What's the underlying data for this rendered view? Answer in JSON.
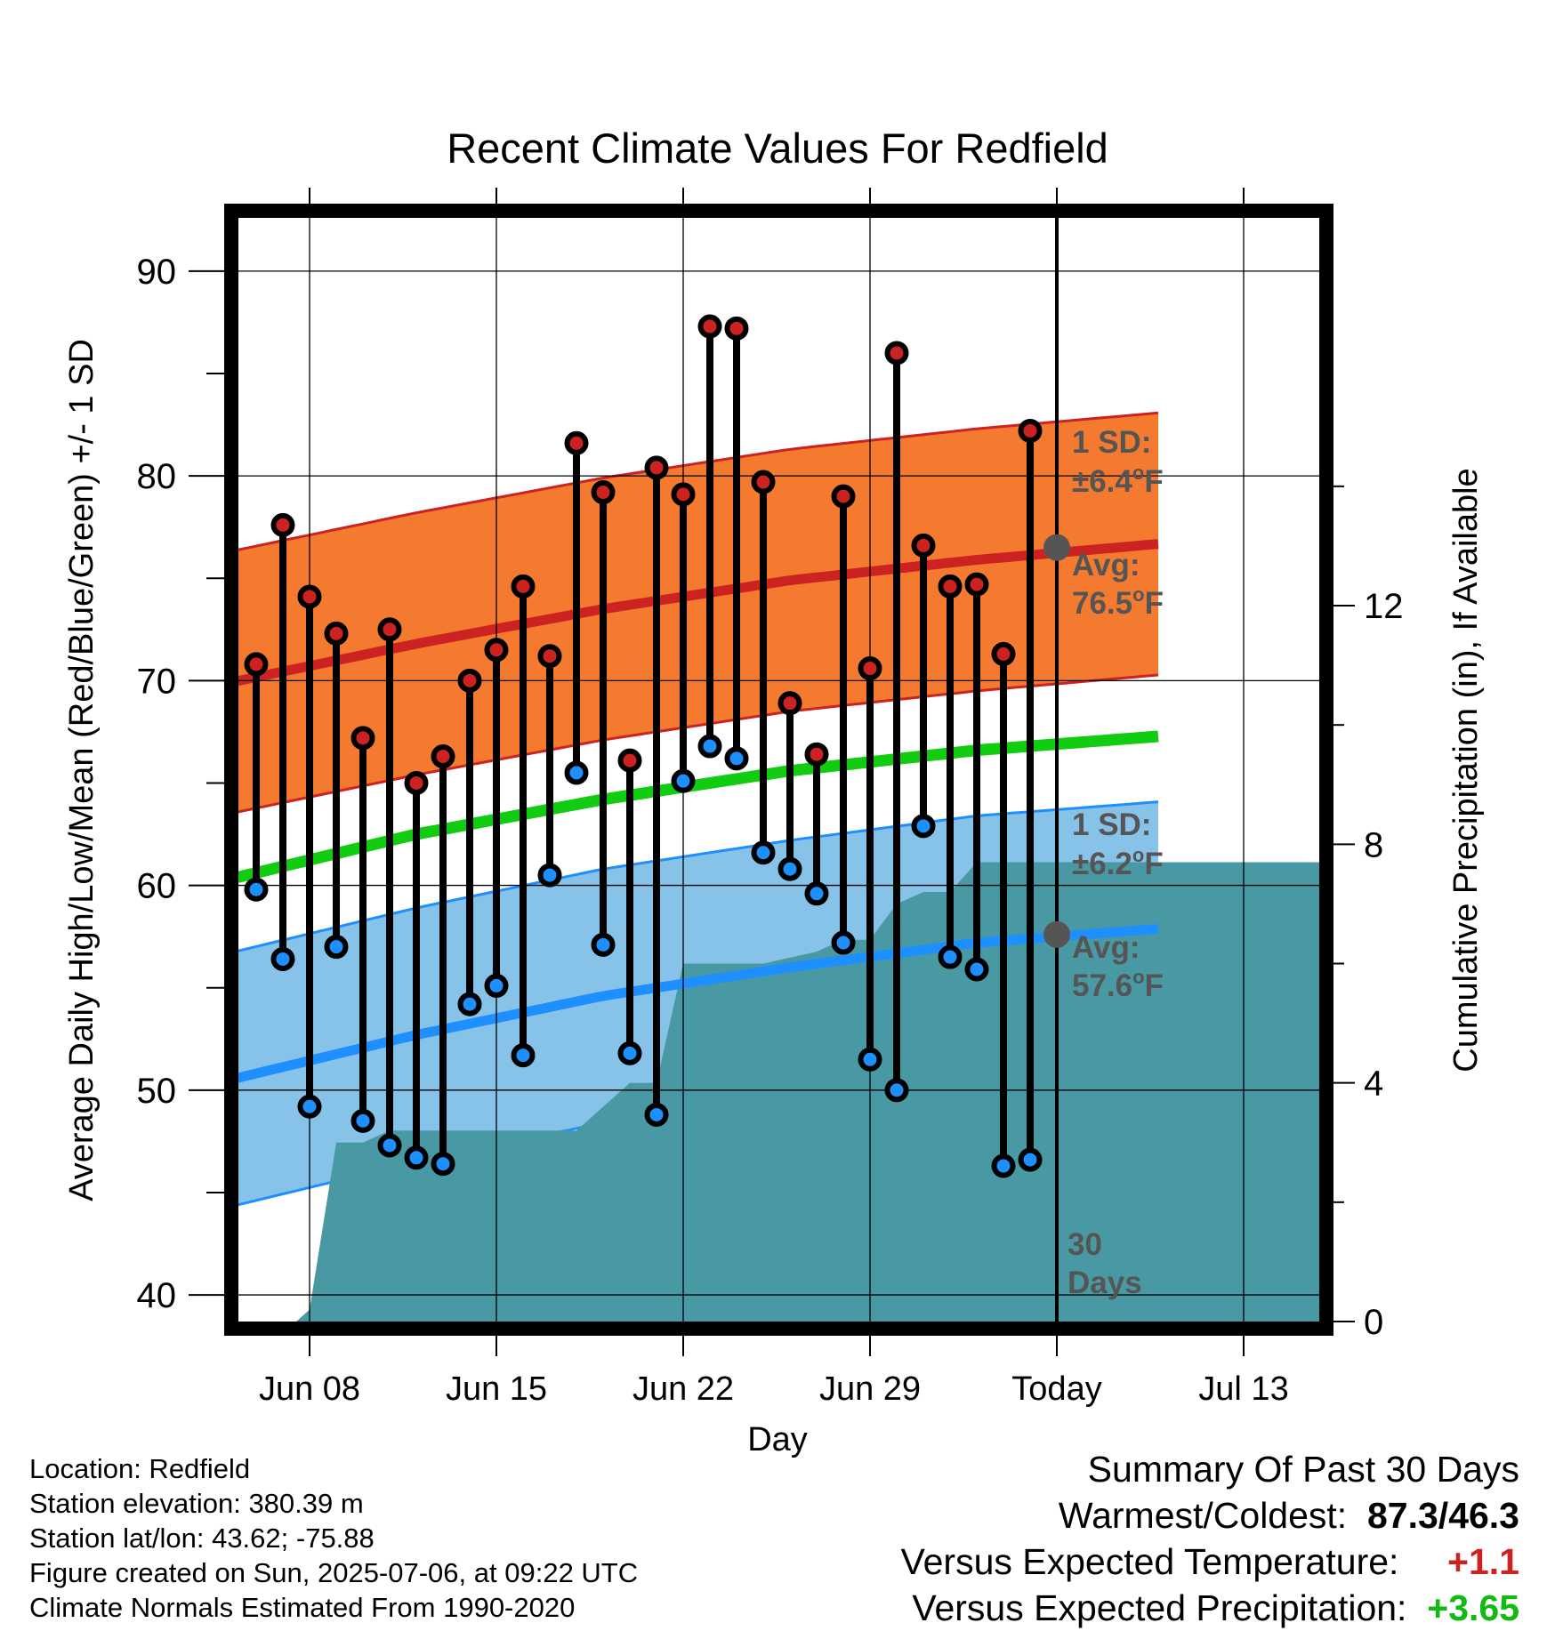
{
  "title": "Recent Climate Values For Redfield",
  "colors": {
    "high": "#cc2222",
    "low": "#1e8fff",
    "mean": "#11cc11",
    "high_band": "#f47a30",
    "low_band": "#87c2e8",
    "precip": "#4999a4",
    "positive": "#cc2222",
    "precip_positive": "#11bb11"
  },
  "chart_data": {
    "type": "line",
    "title": "Recent Climate Values For Redfield",
    "xlabel": "Day",
    "ylabel": "Average Daily High/Low/Mean (Red/Blue/Green) +/- 1 SD",
    "y2label": "Cumulative Precipitation (in), If Available",
    "x_ticks": [
      "Jun 08",
      "Jun 15",
      "Jun 22",
      "Jun 29",
      "Today",
      "Jul 13"
    ],
    "ylim": [
      38.7,
      92.6
    ],
    "y_ticks": [
      40,
      50,
      60,
      70,
      80,
      90
    ],
    "y2lim": [
      0,
      18.5
    ],
    "y2_ticks": [
      0,
      4,
      8,
      12
    ],
    "grid": true,
    "today_marker": "Today",
    "today_label": "30\nDays",
    "days": [
      "Jun 06",
      "Jun 07",
      "Jun 08",
      "Jun 09",
      "Jun 10",
      "Jun 11",
      "Jun 12",
      "Jun 13",
      "Jun 14",
      "Jun 15",
      "Jun 16",
      "Jun 17",
      "Jun 18",
      "Jun 19",
      "Jun 20",
      "Jun 21",
      "Jun 22",
      "Jun 23",
      "Jun 24",
      "Jun 25",
      "Jun 26",
      "Jun 27",
      "Jun 28",
      "Jun 29",
      "Jun 30",
      "Jul 01",
      "Jul 02",
      "Jul 03",
      "Jul 04",
      "Jul 05"
    ],
    "observed_high": [
      70.8,
      77.6,
      74.1,
      72.3,
      67.2,
      72.5,
      65.0,
      66.3,
      70.0,
      71.5,
      74.6,
      71.2,
      81.6,
      79.2,
      66.1,
      80.4,
      79.1,
      87.3,
      87.2,
      79.7,
      68.9,
      66.4,
      79.0,
      70.6,
      86.0,
      76.6,
      74.6,
      74.7,
      71.3,
      82.2
    ],
    "observed_low": [
      59.8,
      56.4,
      49.2,
      57.0,
      48.5,
      47.3,
      46.7,
      46.4,
      54.2,
      55.1,
      51.7,
      60.5,
      65.5,
      57.1,
      51.8,
      48.8,
      65.1,
      66.8,
      66.2,
      61.6,
      60.8,
      59.6,
      57.2,
      51.5,
      50.0,
      62.9,
      56.5,
      55.9,
      46.3,
      46.6
    ],
    "normal_high": {
      "x": [
        "Jun 05",
        "Jun 12",
        "Jun 19",
        "Jun 26",
        "Jul 03",
        "Jul 10",
        "Jul 16"
      ],
      "values": [
        69.9,
        71.8,
        73.5,
        74.9,
        75.9,
        76.7,
        77.1
      ],
      "sd_label": "1 SD:",
      "sd_value": "±6.4",
      "sd": 6.4,
      "avg_label": "Avg:",
      "avg_value": "76.5",
      "avg": 76.5,
      "unit_sup": "o",
      "unit": "F"
    },
    "normal_low": {
      "x": [
        "Jun 05",
        "Jun 12",
        "Jun 19",
        "Jun 26",
        "Jul 03",
        "Jul 10",
        "Jul 16"
      ],
      "values": [
        50.5,
        52.7,
        54.6,
        56.0,
        57.2,
        57.9,
        58.3
      ],
      "sd_label": "1 SD:",
      "sd_value": "±6.2",
      "sd": 6.2,
      "avg_label": "Avg:",
      "avg_value": "57.6",
      "avg": 57.6,
      "unit_sup": "o",
      "unit": "F"
    },
    "normal_mean": {
      "x": [
        "Jun 05",
        "Jun 12",
        "Jun 19",
        "Jun 26",
        "Jul 03",
        "Jul 10",
        "Jul 16"
      ],
      "values": [
        60.3,
        62.5,
        64.2,
        65.6,
        66.6,
        67.3,
        67.6
      ]
    },
    "cumulative_precipitation": {
      "x": [
        "Jun 07.5",
        "Jun 08",
        "Jun 09",
        "Jun 10",
        "Jun 11",
        "Jun 12",
        "Jun 13",
        "Jun 17",
        "Jun 18",
        "Jun 19",
        "Jun 20",
        "Jun 21",
        "Jun 22",
        "Jun 24",
        "Jun 25",
        "Jun 26",
        "Jun 27",
        "Jun 28",
        "Jun 29",
        "Jun 30",
        "Jul 01",
        "Jul 02",
        "Jul 03",
        "Jul 04",
        "Jul 05",
        "Jul 16"
      ],
      "values": [
        0,
        0.2,
        3.0,
        3.0,
        3.2,
        3.2,
        3.2,
        3.2,
        3.2,
        3.6,
        4.0,
        4.0,
        6.0,
        6.0,
        6.0,
        6.1,
        6.2,
        6.4,
        6.4,
        7.0,
        7.2,
        7.2,
        7.7,
        7.7,
        7.7,
        7.7
      ]
    }
  },
  "info": {
    "location": "Location: Redfield",
    "elevation": "Station elevation: 380.39 m",
    "latlon": "Station lat/lon: 43.62; -75.88",
    "created": "Figure created on Sun, 2025-07-06, at 09:22 UTC",
    "normals": "Climate Normals Estimated From 1990-2020"
  },
  "summary": {
    "heading": "Summary Of Past 30 Days",
    "warmest_label": "Warmest/Coldest:",
    "warmest_value": "87.3/46.3",
    "temp_label": "Versus Expected Temperature:",
    "temp_value": "+1.1",
    "precip_label": "Versus Expected Precipitation:",
    "precip_value": "+3.65"
  }
}
